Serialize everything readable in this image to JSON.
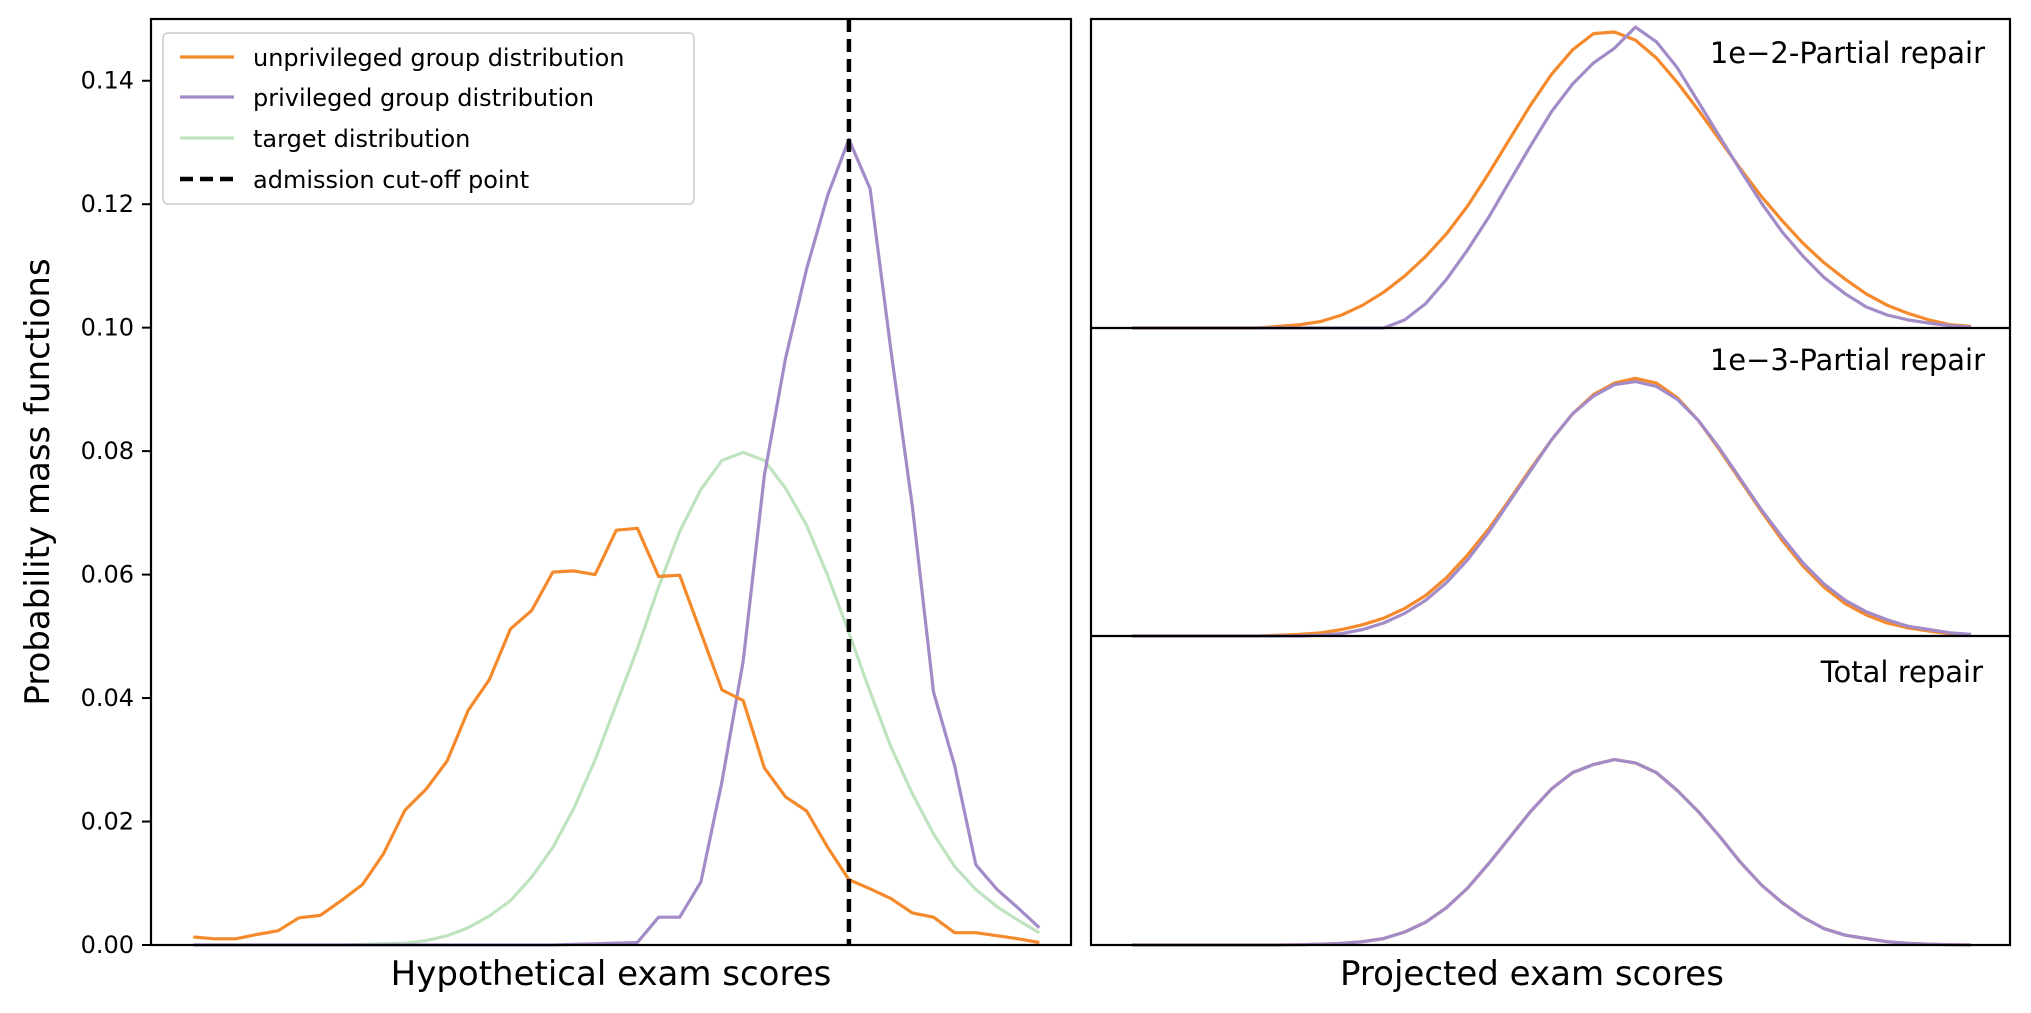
{
  "colors": {
    "unprivileged": "#f58a2c",
    "privileged": "#a38bc8",
    "target": "#bfe3bf",
    "cutoff": "#000000"
  },
  "chart_data": [
    {
      "type": "line",
      "xlabel": "Hypothetical exam scores",
      "ylabel": "Probability mass functions",
      "ylim": [
        0,
        0.15
      ],
      "yticks": [
        "0.00",
        "0.02",
        "0.04",
        "0.06",
        "0.08",
        "0.10",
        "0.12",
        "0.14"
      ],
      "xlim": [
        -2,
        41.5
      ],
      "legend_position": "upper-left",
      "legend": [
        "unprivileged group distribution",
        "privileged group distribution",
        "target distribution",
        "admission cut-off point"
      ],
      "cutoff_x": 31,
      "x": [
        0,
        1,
        2,
        3,
        4,
        5,
        6,
        7,
        8,
        9,
        10,
        11,
        12,
        13,
        14,
        15,
        16,
        17,
        18,
        19,
        20,
        21,
        22,
        23,
        24,
        25,
        26,
        27,
        28,
        29,
        30,
        31,
        32,
        33,
        34,
        35,
        36,
        37,
        38,
        39,
        40
      ],
      "series": [
        {
          "name": "unprivileged group distribution",
          "values": [
            0.0013,
            0.001,
            0.001,
            0.0017,
            0.0023,
            0.0044,
            0.0048,
            0.0072,
            0.0098,
            0.0148,
            0.0218,
            0.0252,
            0.0298,
            0.038,
            0.043,
            0.0512,
            0.0542,
            0.0604,
            0.0606,
            0.06,
            0.0672,
            0.0675,
            0.0597,
            0.0599,
            0.0506,
            0.0413,
            0.0396,
            0.0287,
            0.024,
            0.0217,
            0.0158,
            0.0106,
            0.0091,
            0.0075,
            0.0052,
            0.0045,
            0.002,
            0.002,
            0.0015,
            0.001,
            0.0004
          ]
        },
        {
          "name": "privileged group distribution",
          "values": [
            0,
            0,
            0,
            0,
            0,
            0,
            0,
            0,
            0,
            0,
            0,
            0,
            0,
            0,
            0,
            0,
            0,
            0,
            0.0001,
            0.0002,
            0.0003,
            0.0004,
            0.0045,
            0.0045,
            0.0102,
            0.0265,
            0.046,
            0.076,
            0.095,
            0.1095,
            0.1215,
            0.1305,
            0.1225,
            0.096,
            0.071,
            0.041,
            0.029,
            0.013,
            0.009,
            0.006,
            0.0028
          ]
        },
        {
          "name": "target distribution",
          "values": [
            0,
            0,
            0,
            0,
            0,
            0,
            0,
            0,
            0.0001,
            0.0002,
            0.0003,
            0.0007,
            0.0015,
            0.0028,
            0.0047,
            0.0072,
            0.011,
            0.0158,
            0.0222,
            0.03,
            0.039,
            0.048,
            0.058,
            0.067,
            0.0738,
            0.0785,
            0.0798,
            0.0785,
            0.074,
            0.068,
            0.0598,
            0.0506,
            0.041,
            0.032,
            0.0245,
            0.018,
            0.0127,
            0.009,
            0.0062,
            0.004,
            0.002
          ]
        }
      ]
    },
    {
      "type": "line",
      "xlabel": "Projected exam scores",
      "panels": [
        {
          "title": "1e−2-Partial repair",
          "series": [
            {
              "name": "unprivileged group distribution",
              "values": [
                0,
                0,
                0,
                0,
                0,
                0,
                0,
                0.001,
                0.002,
                0.004,
                0.008,
                0.014,
                0.022,
                0.032,
                0.044,
                0.058,
                0.075,
                0.095,
                0.116,
                0.137,
                0.156,
                0.171,
                0.181,
                0.182,
                0.177,
                0.166,
                0.151,
                0.134,
                0.116,
                0.098,
                0.081,
                0.066,
                0.052,
                0.04,
                0.03,
                0.021,
                0.014,
                0.009,
                0.005,
                0.002,
                0.001
              ]
            },
            {
              "name": "privileged group distribution",
              "values": [
                0,
                0,
                0,
                0,
                0,
                0,
                0,
                0,
                0,
                0,
                0,
                0,
                0,
                0.005,
                0.015,
                0.03,
                0.048,
                0.068,
                0.09,
                0.112,
                0.133,
                0.15,
                0.163,
                0.172,
                0.185,
                0.176,
                0.16,
                0.139,
                0.118,
                0.097,
                0.077,
                0.059,
                0.044,
                0.031,
                0.021,
                0.013,
                0.008,
                0.005,
                0.003,
                0.0015,
                0.0005
              ]
            }
          ]
        },
        {
          "title": "1e−3-Partial repair",
          "series": [
            {
              "name": "unprivileged group distribution",
              "values": [
                0,
                0,
                0,
                0,
                0,
                0,
                0,
                0.0005,
                0.001,
                0.002,
                0.004,
                0.007,
                0.011,
                0.017,
                0.025,
                0.036,
                0.05,
                0.066,
                0.084,
                0.103,
                0.121,
                0.137,
                0.149,
                0.156,
                0.159,
                0.156,
                0.147,
                0.133,
                0.115,
                0.096,
                0.077,
                0.059,
                0.043,
                0.03,
                0.02,
                0.013,
                0.008,
                0.005,
                0.003,
                0.0015,
                0.0005
              ]
            },
            {
              "name": "privileged group distribution",
              "values": [
                0,
                0,
                0,
                0,
                0,
                0,
                0,
                0,
                0,
                0.0005,
                0.0015,
                0.004,
                0.008,
                0.014,
                0.022,
                0.033,
                0.047,
                0.064,
                0.083,
                0.102,
                0.121,
                0.137,
                0.148,
                0.155,
                0.157,
                0.154,
                0.146,
                0.133,
                0.116,
                0.097,
                0.078,
                0.061,
                0.045,
                0.032,
                0.022,
                0.015,
                0.01,
                0.006,
                0.004,
                0.002,
                0.001
              ]
            }
          ]
        },
        {
          "title": "Total repair",
          "series": [
            {
              "name": "unprivileged group distribution",
              "values": [
                0,
                0,
                0,
                0,
                0,
                0,
                0,
                0,
                0.0002,
                0.0005,
                0.001,
                0.002,
                0.004,
                0.008,
                0.014,
                0.023,
                0.035,
                0.05,
                0.066,
                0.082,
                0.096,
                0.106,
                0.111,
                0.114,
                0.112,
                0.106,
                0.095,
                0.082,
                0.067,
                0.051,
                0.037,
                0.026,
                0.017,
                0.01,
                0.006,
                0.004,
                0.002,
                0.001,
                0.0005,
                0.0002,
                0
              ]
            },
            {
              "name": "privileged group distribution",
              "values": [
                0,
                0,
                0,
                0,
                0,
                0,
                0,
                0,
                0.0002,
                0.0005,
                0.001,
                0.002,
                0.004,
                0.008,
                0.014,
                0.023,
                0.035,
                0.05,
                0.066,
                0.082,
                0.096,
                0.106,
                0.111,
                0.114,
                0.112,
                0.106,
                0.095,
                0.082,
                0.067,
                0.051,
                0.037,
                0.026,
                0.017,
                0.01,
                0.006,
                0.004,
                0.002,
                0.001,
                0.0005,
                0.0002,
                0
              ]
            }
          ]
        }
      ]
    }
  ]
}
